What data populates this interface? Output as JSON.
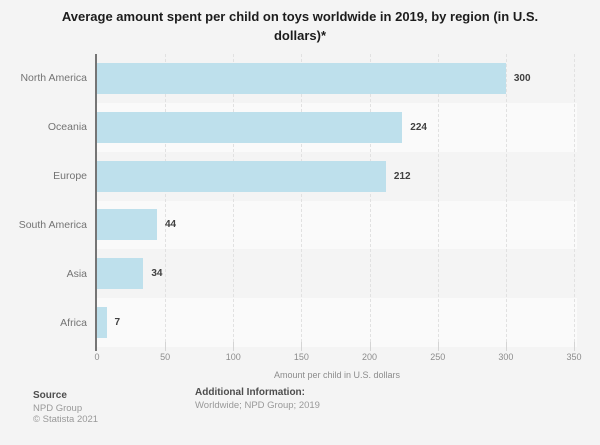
{
  "title": "Average amount spent per child on toys worldwide in 2019, by region (in U.S. dollars)*",
  "chart_data": {
    "type": "bar",
    "orientation": "horizontal",
    "categories": [
      "North America",
      "Oceania",
      "Europe",
      "South America",
      "Asia",
      "Africa"
    ],
    "values": [
      300,
      224,
      212,
      44,
      34,
      7
    ],
    "value_labels": [
      "300",
      "224",
      "212",
      "44",
      "34",
      "7"
    ],
    "xlabel": "Amount per child in U.S. dollars",
    "xlim": [
      0,
      350
    ],
    "xticks": [
      0,
      50,
      100,
      150,
      200,
      250,
      300,
      350
    ],
    "grid": "vertical dashed gridlines, alternating row stripes",
    "legend": "none",
    "bar_color": "#bee0ec",
    "stripe_color": "#fafafa",
    "background_color": "#f4f4f4"
  },
  "footer": {
    "source_label": "Source",
    "source_value": "NPD Group",
    "copyright": "© Statista 2021",
    "additional_label": "Additional Information:",
    "additional_value": "Worldwide; NPD Group; 2019"
  }
}
